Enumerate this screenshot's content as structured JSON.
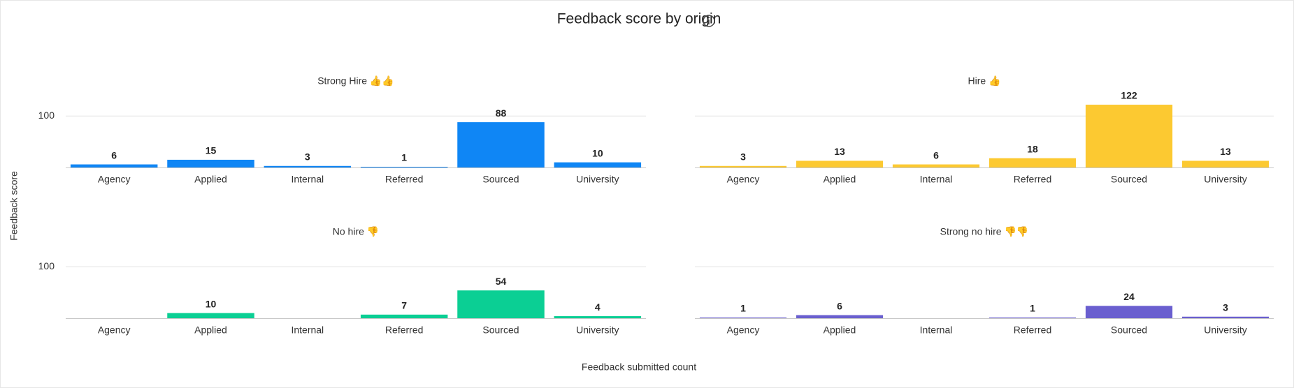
{
  "title": "Feedback score by origin",
  "xlabel": "Feedback submitted count",
  "ylabel": "Feedback score",
  "chart_data": [
    {
      "type": "bar",
      "title": "Strong Hire 👍👍",
      "categories": [
        "Agency",
        "Applied",
        "Internal",
        "Referred",
        "Sourced",
        "University"
      ],
      "values": [
        6,
        15,
        3,
        1,
        88,
        10
      ],
      "color": "#0f86f5",
      "ylim": [
        0,
        160
      ],
      "yticks": [
        100
      ],
      "grid": true,
      "ytick_labels": true
    },
    {
      "type": "bar",
      "title": "Hire 👍",
      "categories": [
        "Agency",
        "Applied",
        "Internal",
        "Referred",
        "Sourced",
        "University"
      ],
      "values": [
        3,
        13,
        6,
        18,
        122,
        13
      ],
      "color": "#fcc931",
      "ylim": [
        0,
        160
      ],
      "yticks": [
        100
      ],
      "grid": true,
      "ytick_labels": false
    },
    {
      "type": "bar",
      "title": "No hire 👎",
      "categories": [
        "Agency",
        "Applied",
        "Internal",
        "Referred",
        "Sourced",
        "University"
      ],
      "values": [
        null,
        10,
        null,
        7,
        54,
        4
      ],
      "color": "#0bcf94",
      "ylim": [
        0,
        160
      ],
      "yticks": [
        100
      ],
      "grid": true,
      "ytick_labels": true
    },
    {
      "type": "bar",
      "title": "Strong no hire 👎👎",
      "categories": [
        "Agency",
        "Applied",
        "Internal",
        "Referred",
        "Sourced",
        "University"
      ],
      "values": [
        1,
        6,
        null,
        1,
        24,
        3
      ],
      "color": "#6a5fcf",
      "ylim": [
        0,
        160
      ],
      "yticks": [
        100
      ],
      "grid": true,
      "ytick_labels": false
    }
  ]
}
